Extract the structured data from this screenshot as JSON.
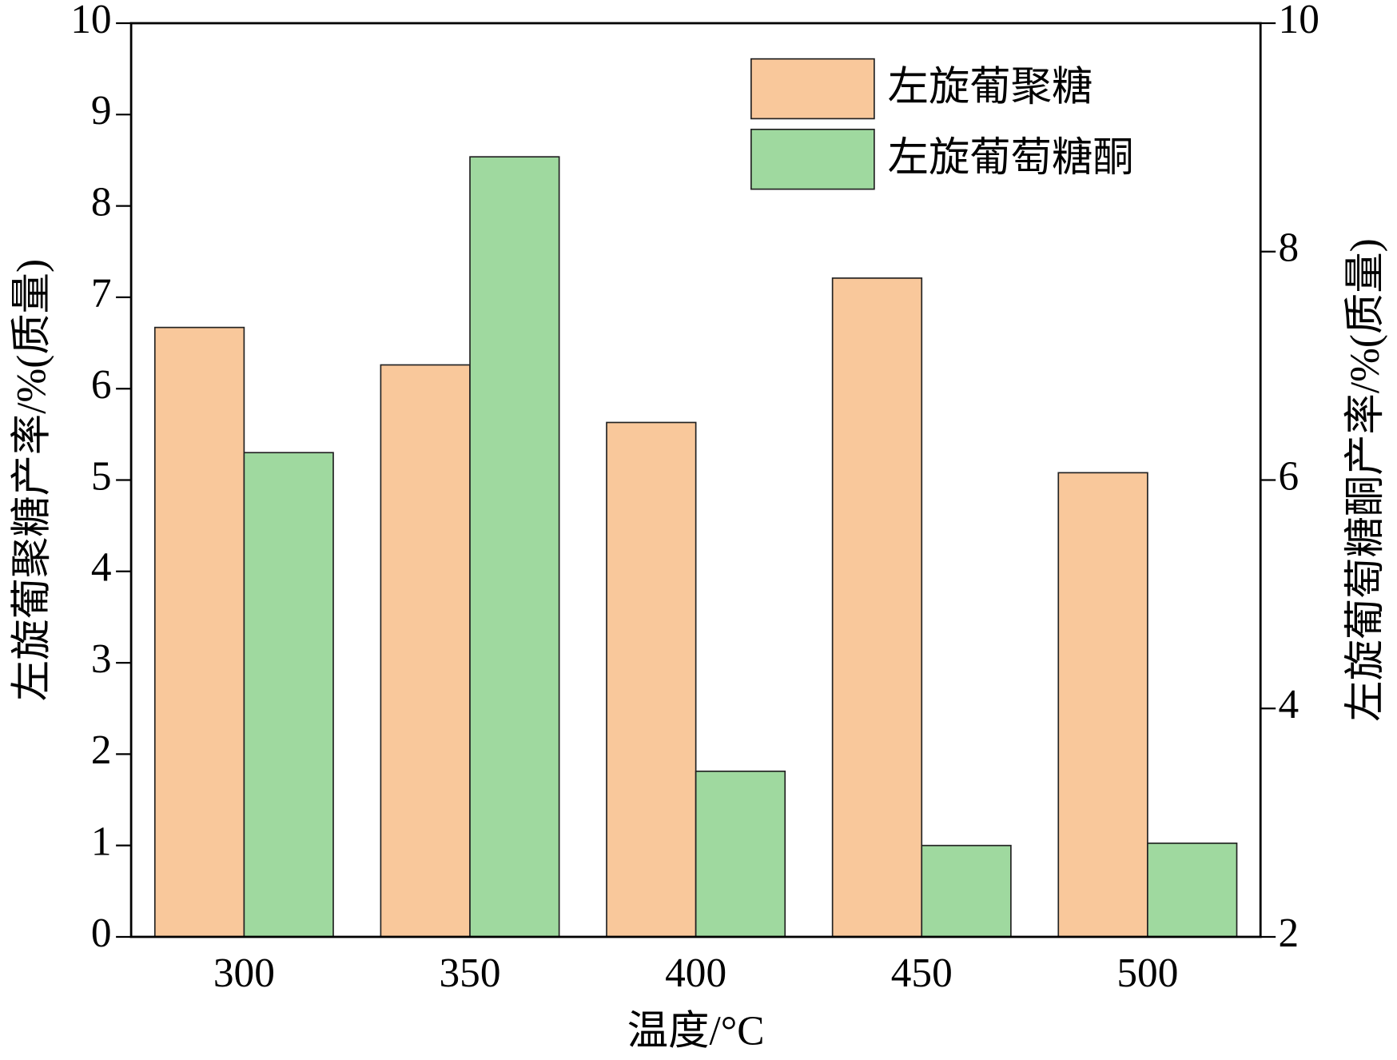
{
  "chart_data": {
    "type": "bar",
    "categories": [
      "300",
      "350",
      "400",
      "450",
      "500"
    ],
    "x_label": "温度/°C",
    "y_label": "左旋葡聚糖产率/%(质量)",
    "y2_label": "左旋葡萄糖酮产率/%(质量)",
    "ylim": [
      0,
      10
    ],
    "yticks": [
      0,
      1,
      2,
      3,
      4,
      5,
      6,
      7,
      8,
      9,
      10
    ],
    "y2lim": [
      2,
      10
    ],
    "y2ticks": [
      2,
      4,
      6,
      8,
      10
    ],
    "legend": "upper right",
    "series": [
      {
        "name": "左旋葡聚糖",
        "color": "#f9c89b",
        "values": [
          6.67,
          6.26,
          5.63,
          7.21,
          5.08
        ]
      },
      {
        "name": "左旋葡萄糖酮",
        "color": "#9fd99f",
        "axis": "y2",
        "values": [
          6.24,
          8.83,
          3.45,
          2.8,
          2.82
        ]
      }
    ]
  }
}
